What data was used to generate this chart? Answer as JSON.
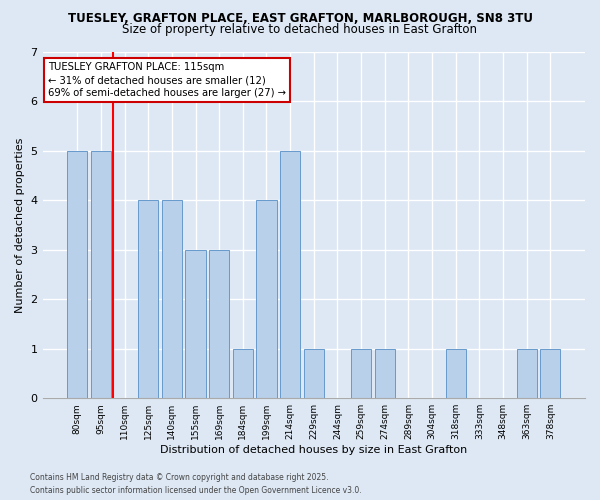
{
  "title1": "TUESLEY, GRAFTON PLACE, EAST GRAFTON, MARLBOROUGH, SN8 3TU",
  "title2": "Size of property relative to detached houses in East Grafton",
  "xlabel": "Distribution of detached houses by size in East Grafton",
  "ylabel": "Number of detached properties",
  "categories": [
    "80sqm",
    "95sqm",
    "110sqm",
    "125sqm",
    "140sqm",
    "155sqm",
    "169sqm",
    "184sqm",
    "199sqm",
    "214sqm",
    "229sqm",
    "244sqm",
    "259sqm",
    "274sqm",
    "289sqm",
    "304sqm",
    "318sqm",
    "333sqm",
    "348sqm",
    "363sqm",
    "378sqm"
  ],
  "values": [
    5,
    5,
    0,
    4,
    4,
    3,
    3,
    1,
    4,
    5,
    1,
    0,
    1,
    1,
    0,
    0,
    1,
    0,
    0,
    1,
    1
  ],
  "bar_color": "#b8d0ea",
  "bar_edge_color": "#6699cc",
  "red_line_index": 2,
  "annotation_line1": "TUESLEY GRAFTON PLACE: 115sqm",
  "annotation_line2": "← 31% of detached houses are smaller (12)",
  "annotation_line3": "69% of semi-detached houses are larger (27) →",
  "annotation_box_facecolor": "#ffffff",
  "annotation_box_edgecolor": "#cc0000",
  "ylim": [
    0,
    7
  ],
  "yticks": [
    0,
    1,
    2,
    3,
    4,
    5,
    6,
    7
  ],
  "background_color": "#dde8f4",
  "grid_color": "#ffffff",
  "footer1": "Contains HM Land Registry data © Crown copyright and database right 2025.",
  "footer2": "Contains public sector information licensed under the Open Government Licence v3.0."
}
